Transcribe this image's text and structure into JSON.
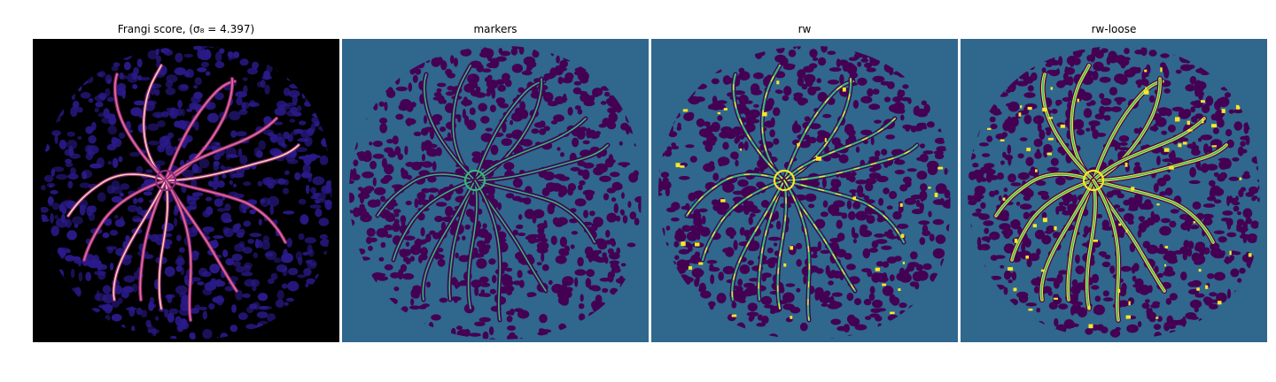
{
  "panels": [
    {
      "title": "Frangi score, (σ₈ = 4.397)",
      "kind": "frangi"
    },
    {
      "title": "markers",
      "kind": "markers"
    },
    {
      "title": "rw",
      "kind": "rw"
    },
    {
      "title": "rw-loose",
      "kind": "rwloose"
    }
  ],
  "colors": {
    "frangi_bg": "#000000",
    "frangi_texture": "#2a1a8a",
    "frangi_vessel_low": "#8c2981",
    "frangi_vessel_high": "#fcd4a8",
    "viridis_bg": "#30678d",
    "viridis_dark": "#440154",
    "viridis_mid": "#35b779",
    "viridis_high": "#fde725"
  }
}
